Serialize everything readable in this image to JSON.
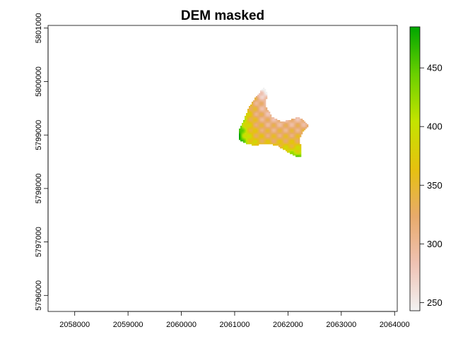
{
  "chart_data": {
    "type": "heatmap",
    "title": "DEM masked",
    "xlabel": "",
    "ylabel": "",
    "xlim": [
      2057500,
      2064050
    ],
    "ylim": [
      5795700,
      5801050
    ],
    "x_ticks": [
      2058000,
      2059000,
      2060000,
      2061000,
      2062000,
      2063000,
      2064000
    ],
    "x_tick_labels": [
      "2058000",
      "2059000",
      "2060000",
      "2061000",
      "2062000",
      "2063000",
      "2064000"
    ],
    "y_ticks": [
      5796000,
      5797000,
      5798000,
      5799000,
      5800000,
      5801000
    ],
    "y_tick_labels": [
      "5796000",
      "5797000",
      "5798000",
      "5799000",
      "5800000",
      "5801000"
    ],
    "colorbar": {
      "range": [
        243,
        485
      ],
      "ticks": [
        250,
        300,
        350,
        400,
        450
      ],
      "tick_labels": [
        "250",
        "300",
        "350",
        "400",
        "450"
      ],
      "colors": [
        "#F2F2F2",
        "#EFC2B3",
        "#E8AA6B",
        "#E6C10F",
        "#C4E400",
        "#6AD000",
        "#00A600"
      ]
    },
    "raster_region": {
      "xmin": 2060980,
      "xmax": 2062330,
      "ymin": 5798600,
      "ymax": 5799880,
      "elevation_range": [
        243,
        485
      ]
    }
  }
}
